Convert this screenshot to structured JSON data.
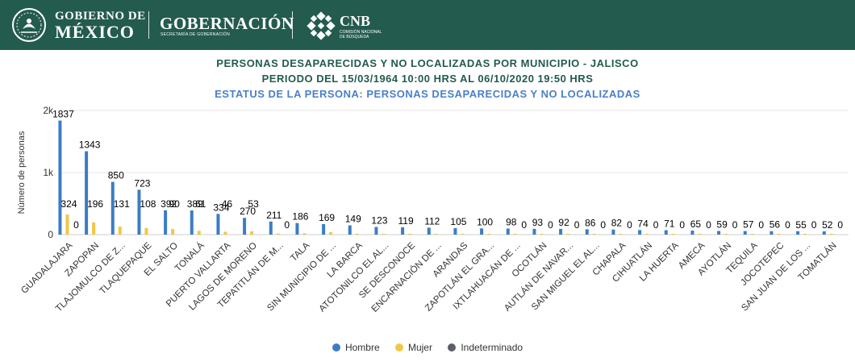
{
  "header": {
    "gob_line1": "GOBIERNO DE",
    "gob_line2": "MÉXICO",
    "gobernacion": "GOBERNACIÓN",
    "gobernacion_sub": "SECRETARÍA DE GOBERNACIÓN",
    "cnb_title": "CNB",
    "cnb_sub": "COMISIÓN NACIONAL DE BÚSQUEDA",
    "bg_color": "#235b4e"
  },
  "titles": {
    "line1": "PERSONAS DESAPARECIDAS Y NO LOCALIZADAS POR MUNICIPIO - JALISCO",
    "line2": "PERIODO DEL 15/03/1964 10:00 HRS AL 06/10/2020 19:50 HRS",
    "line3": "ESTATUS DE LA PERSONA: PERSONAS DESAPARECIDAS Y NO LOCALIZADAS"
  },
  "chart_data": {
    "type": "bar",
    "ylabel": "Número de personas",
    "ylim": [
      0,
      2000
    ],
    "yticks": [
      0,
      1000,
      2000
    ],
    "ytick_labels": [
      "0",
      "1k",
      "2k"
    ],
    "grid": true,
    "legend_position": "bottom-center",
    "categories": [
      "GUADALAJARA",
      "ZAPOPAN",
      "TLAJOMULCO DE Z...",
      "TLAQUEPAQUE",
      "EL SALTO",
      "TONALÁ",
      "PUERTO VALLARTA",
      "LAGOS DE MORENO",
      "TEPATITLÁN DE M...",
      "TALA",
      "SIN MUNICIPIO DE ...",
      "LA BARCA",
      "ATOTONILCO EL AL...",
      "SE DESCONOCE",
      "ENCARNACIÓN DE ...",
      "ARANDAS",
      "ZAPOTLÁN EL GRA...",
      "IXTLAHUACÁN DE ...",
      "OCOTLÁN",
      "AUTLÁN DE NAVAR...",
      "SAN MIGUEL EL AL...",
      "CHAPALA",
      "CIHUATLÁN",
      "LA HUERTA",
      "AMECA",
      "AYOTLÁN",
      "TEQUILA",
      "JOCOTEPEC",
      "SAN JUAN DE LOS ...",
      "TOMATLÁN"
    ],
    "series": [
      {
        "name": "Hombre",
        "color": "#3b7dc4",
        "values": [
          1837,
          1343,
          850,
          723,
          392,
          389,
          334,
          270,
          211,
          186,
          169,
          149,
          123,
          119,
          112,
          105,
          100,
          98,
          93,
          92,
          86,
          82,
          74,
          71,
          65,
          59,
          57,
          56,
          55,
          52
        ]
      },
      {
        "name": "Mujer",
        "color": "#f2c744",
        "values": [
          324,
          196,
          131,
          108,
          90,
          61,
          46,
          53,
          18,
          22,
          40,
          14,
          12,
          10,
          9,
          9,
          14,
          8,
          7,
          6,
          6,
          9,
          5,
          5,
          5,
          4,
          4,
          5,
          3,
          4
        ]
      },
      {
        "name": "Indeterminado",
        "color": "#5b5f66",
        "values": [
          0,
          0,
          0,
          0,
          0,
          0,
          0,
          0,
          0,
          0,
          0,
          0,
          0,
          0,
          0,
          0,
          0,
          0,
          0,
          0,
          0,
          0,
          0,
          0,
          0,
          0,
          0,
          0,
          0,
          0
        ]
      }
    ],
    "data_labels": [
      {
        "category": 0,
        "series": 0,
        "text": "1837"
      },
      {
        "category": 0,
        "series": 1,
        "text": "324"
      },
      {
        "category": 0,
        "series": 2,
        "text": "0"
      },
      {
        "category": 1,
        "series": 0,
        "text": "1343"
      },
      {
        "category": 1,
        "series": 1,
        "text": "196"
      },
      {
        "category": 2,
        "series": 0,
        "text": "850"
      },
      {
        "category": 2,
        "series": 1,
        "text": "131"
      },
      {
        "category": 3,
        "series": 0,
        "text": "723"
      },
      {
        "category": 3,
        "series": 1,
        "text": "108"
      },
      {
        "category": 4,
        "series": 0,
        "text": "392"
      },
      {
        "category": 4,
        "series": 1,
        "text": "90"
      },
      {
        "category": 5,
        "series": 0,
        "text": "389"
      },
      {
        "category": 5,
        "series": 1,
        "text": "61"
      },
      {
        "category": 6,
        "series": 0,
        "text": "334"
      },
      {
        "category": 6,
        "series": 1,
        "text": "46"
      },
      {
        "category": 7,
        "series": 0,
        "text": "270"
      },
      {
        "category": 7,
        "series": 1,
        "text": "53"
      },
      {
        "category": 8,
        "series": 0,
        "text": "211"
      },
      {
        "category": 8,
        "series": 2,
        "text": "0"
      },
      {
        "category": 9,
        "series": 0,
        "text": "186"
      },
      {
        "category": 10,
        "series": 0,
        "text": "169"
      },
      {
        "category": 11,
        "series": 0,
        "text": "149"
      },
      {
        "category": 12,
        "series": 0,
        "text": "123"
      },
      {
        "category": 13,
        "series": 0,
        "text": "119"
      },
      {
        "category": 14,
        "series": 0,
        "text": "112"
      },
      {
        "category": 15,
        "series": 0,
        "text": "105"
      },
      {
        "category": 16,
        "series": 0,
        "text": "100"
      },
      {
        "category": 17,
        "series": 0,
        "text": "98"
      },
      {
        "category": 17,
        "series": 2,
        "text": "0"
      },
      {
        "category": 18,
        "series": 0,
        "text": "93"
      },
      {
        "category": 18,
        "series": 2,
        "text": "0"
      },
      {
        "category": 19,
        "series": 0,
        "text": "92"
      },
      {
        "category": 19,
        "series": 2,
        "text": "0"
      },
      {
        "category": 20,
        "series": 0,
        "text": "86"
      },
      {
        "category": 20,
        "series": 2,
        "text": "0"
      },
      {
        "category": 21,
        "series": 0,
        "text": "82"
      },
      {
        "category": 21,
        "series": 2,
        "text": "0"
      },
      {
        "category": 22,
        "series": 0,
        "text": "74"
      },
      {
        "category": 22,
        "series": 2,
        "text": "0"
      },
      {
        "category": 23,
        "series": 0,
        "text": "71"
      },
      {
        "category": 23,
        "series": 2,
        "text": "0"
      },
      {
        "category": 24,
        "series": 0,
        "text": "65"
      },
      {
        "category": 24,
        "series": 2,
        "text": "0"
      },
      {
        "category": 25,
        "series": 0,
        "text": "59"
      },
      {
        "category": 25,
        "series": 2,
        "text": "0"
      },
      {
        "category": 26,
        "series": 0,
        "text": "57"
      },
      {
        "category": 26,
        "series": 2,
        "text": "0"
      },
      {
        "category": 27,
        "series": 0,
        "text": "56"
      },
      {
        "category": 27,
        "series": 2,
        "text": "0"
      },
      {
        "category": 28,
        "series": 0,
        "text": "55"
      },
      {
        "category": 28,
        "series": 2,
        "text": "0"
      },
      {
        "category": 29,
        "series": 0,
        "text": "52"
      },
      {
        "category": 29,
        "series": 2,
        "text": "0"
      }
    ]
  },
  "legend": [
    {
      "label": "Hombre",
      "color": "#3b7dc4"
    },
    {
      "label": "Mujer",
      "color": "#f2c744"
    },
    {
      "label": "Indeterminado",
      "color": "#5b5f66"
    }
  ]
}
